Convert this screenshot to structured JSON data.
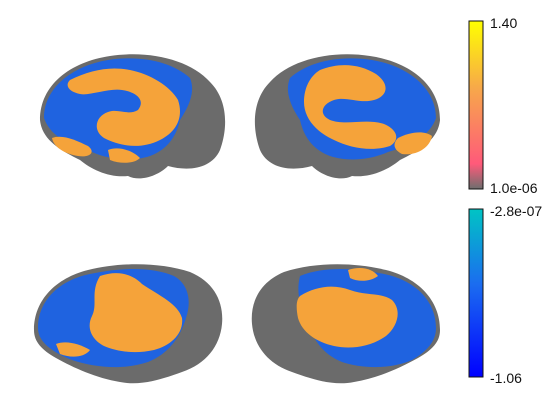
{
  "colorbars": {
    "positive": {
      "max_label": "1.40",
      "min_label": "1.0e-06",
      "gradient": [
        "#6e6e6e",
        "#ff5a7a",
        "#f7a84a",
        "#ffff00"
      ]
    },
    "negative": {
      "max_label": "-2.8e-07",
      "min_label": "-1.06",
      "gradient": [
        "#0000ff",
        "#1060ff",
        "#00c8c8"
      ]
    }
  },
  "colors": {
    "cortex_gray": "#6b6b6b",
    "positive_orange": "#f5a33a",
    "negative_blue": "#1f63e0",
    "background": "#ffffff"
  }
}
